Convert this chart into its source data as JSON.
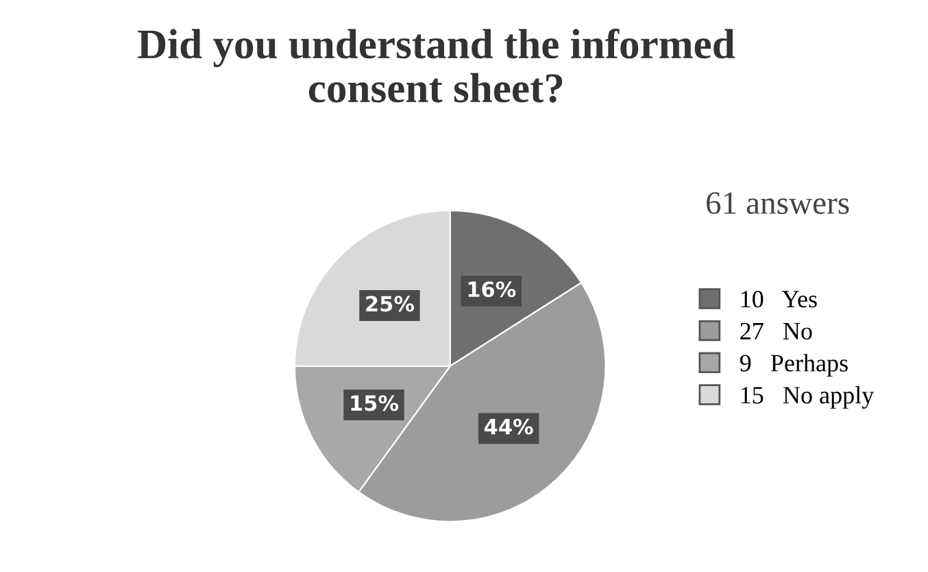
{
  "chart_data": {
    "type": "pie",
    "title": "Did you understand the informed consent sheet?",
    "subtitle": "61 answers",
    "categories": [
      "10   Yes",
      "27   No",
      "9   Perhaps",
      "15   No apply"
    ],
    "values": [
      16,
      44,
      15,
      25
    ],
    "value_labels": [
      "16%",
      "44%",
      "15%",
      "25%"
    ],
    "colors": [
      "#6f6f6f",
      "#9c9c9c",
      "#a8a8a8",
      "#d9d9d9"
    ],
    "legend": "right"
  }
}
